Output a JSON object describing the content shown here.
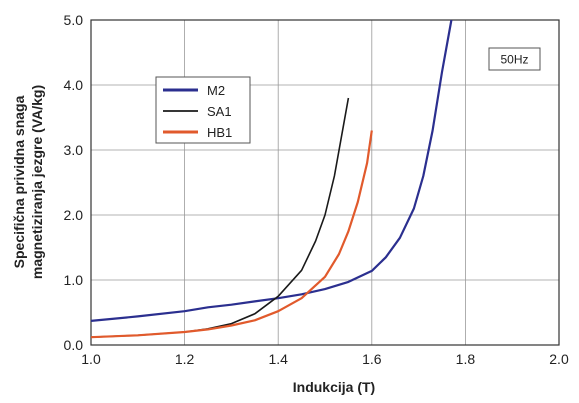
{
  "chart_data": {
    "type": "line",
    "title": "",
    "xlabel": "Indukcija (T)",
    "ylabel_lines": [
      "Specifična prividna snaga",
      "magnetiziranja jezgre (VA/kg)"
    ],
    "xlim": [
      1.0,
      2.0
    ],
    "ylim": [
      0.0,
      5.0
    ],
    "x_ticks": [
      "1.0",
      "1.2",
      "1.4",
      "1.6",
      "1.8",
      "2.0"
    ],
    "y_ticks": [
      "0.0",
      "1.0",
      "2.0",
      "3.0",
      "4.0",
      "5.0"
    ],
    "grid": true,
    "legend_position": "upper-left",
    "annotation": "50Hz",
    "series": [
      {
        "name": "M2",
        "color": "#2b2f8f",
        "points": [
          [
            1.0,
            0.37
          ],
          [
            1.1,
            0.44
          ],
          [
            1.2,
            0.52
          ],
          [
            1.25,
            0.58
          ],
          [
            1.3,
            0.62
          ],
          [
            1.35,
            0.67
          ],
          [
            1.4,
            0.72
          ],
          [
            1.45,
            0.78
          ],
          [
            1.5,
            0.86
          ],
          [
            1.55,
            0.97
          ],
          [
            1.6,
            1.14
          ],
          [
            1.63,
            1.35
          ],
          [
            1.66,
            1.65
          ],
          [
            1.69,
            2.1
          ],
          [
            1.71,
            2.6
          ],
          [
            1.73,
            3.3
          ],
          [
            1.75,
            4.2
          ],
          [
            1.77,
            5.0
          ]
        ]
      },
      {
        "name": "SA1",
        "color": "#1a1a1a",
        "points": [
          [
            1.0,
            0.12
          ],
          [
            1.1,
            0.15
          ],
          [
            1.2,
            0.2
          ],
          [
            1.25,
            0.25
          ],
          [
            1.3,
            0.33
          ],
          [
            1.35,
            0.48
          ],
          [
            1.4,
            0.75
          ],
          [
            1.45,
            1.15
          ],
          [
            1.48,
            1.6
          ],
          [
            1.5,
            2.0
          ],
          [
            1.52,
            2.6
          ],
          [
            1.535,
            3.2
          ],
          [
            1.55,
            3.8
          ]
        ]
      },
      {
        "name": "HB1",
        "color": "#e15a2c",
        "points": [
          [
            1.0,
            0.12
          ],
          [
            1.1,
            0.15
          ],
          [
            1.2,
            0.2
          ],
          [
            1.25,
            0.24
          ],
          [
            1.3,
            0.3
          ],
          [
            1.35,
            0.38
          ],
          [
            1.4,
            0.52
          ],
          [
            1.45,
            0.72
          ],
          [
            1.5,
            1.05
          ],
          [
            1.53,
            1.4
          ],
          [
            1.55,
            1.75
          ],
          [
            1.57,
            2.2
          ],
          [
            1.59,
            2.8
          ],
          [
            1.6,
            3.3
          ]
        ]
      }
    ]
  }
}
